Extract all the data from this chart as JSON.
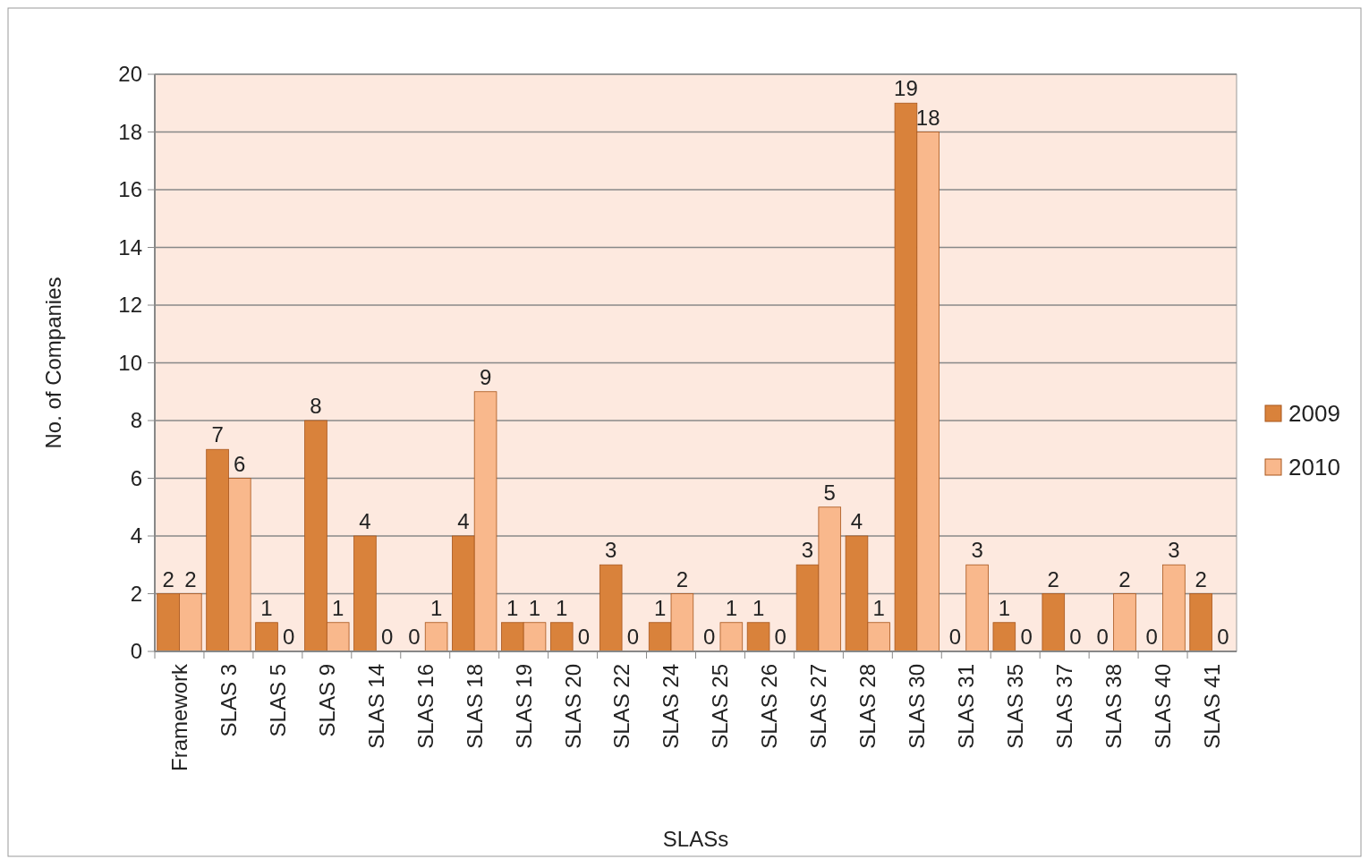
{
  "chart_data": {
    "type": "bar",
    "xlabel": "SLASs",
    "ylabel": "No. of Companies",
    "categories": [
      "Framework",
      "SLAS 3",
      "SLAS 5",
      "SLAS 9",
      "SLAS 14",
      "SLAS 16",
      "SLAS 18",
      "SLAS 19",
      "SLAS 20",
      "SLAS 22",
      "SLAS 24",
      "SLAS 25",
      "SLAS 26",
      "SLAS 27",
      "SLAS 28",
      "SLAS 30",
      "SLAS 31",
      "SLAS 35",
      "SLAS 37",
      "SLAS 38",
      "SLAS 40",
      "SLAS 41"
    ],
    "series": [
      {
        "name": "2009",
        "color": "#d9823b",
        "values": [
          2,
          7,
          1,
          8,
          4,
          0,
          4,
          1,
          1,
          3,
          1,
          0,
          1,
          3,
          4,
          19,
          0,
          1,
          2,
          0,
          0,
          2
        ]
      },
      {
        "name": "2010",
        "color": "#f9b88c",
        "values": [
          2,
          6,
          0,
          1,
          0,
          1,
          9,
          1,
          0,
          0,
          2,
          1,
          0,
          5,
          1,
          18,
          3,
          0,
          0,
          2,
          3,
          0
        ]
      }
    ],
    "ylim": [
      0,
      20
    ],
    "yticks": [
      0,
      2,
      4,
      6,
      8,
      10,
      12,
      14,
      16,
      18,
      20
    ],
    "grid": "y",
    "legend": "right",
    "data_labels": true
  }
}
